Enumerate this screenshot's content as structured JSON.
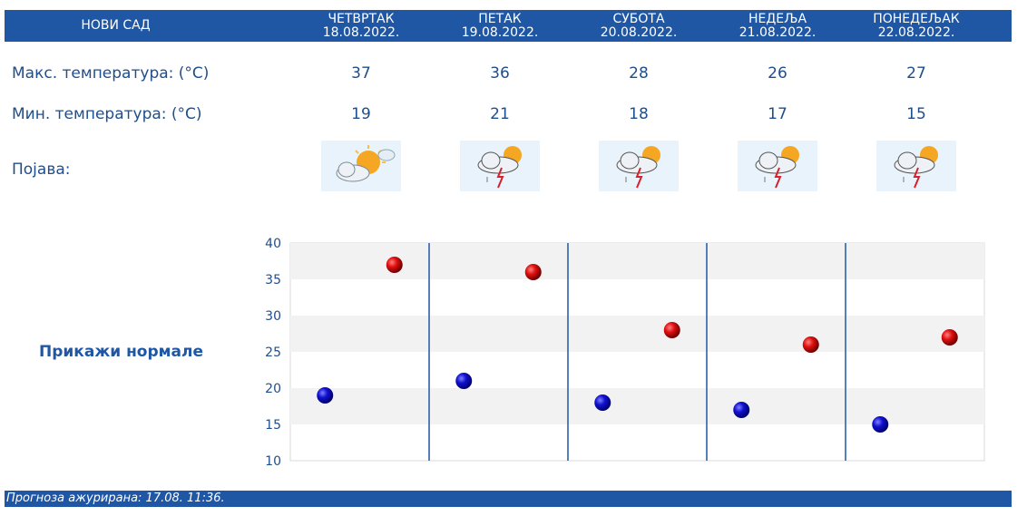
{
  "header": {
    "city": "НОВИ САД",
    "days": [
      {
        "name": "ЧЕТВРТАК",
        "date": "18.08.2022."
      },
      {
        "name": "ПЕТАК",
        "date": "19.08.2022."
      },
      {
        "name": "СУБОТА",
        "date": "20.08.2022."
      },
      {
        "name": "НЕДЕЉА",
        "date": "21.08.2022."
      },
      {
        "name": "ПОНЕДЕЉАК",
        "date": "22.08.2022."
      }
    ]
  },
  "rows": {
    "max_label": "Макс. температура: (°C)",
    "min_label": "Мин. температура: (°C)",
    "phenomenon_label": "Појава:",
    "max_values": [
      "37",
      "36",
      "28",
      "26",
      "27"
    ],
    "min_values": [
      "19",
      "21",
      "18",
      "17",
      "15"
    ],
    "icons": [
      "partly-sunny-icon",
      "thunderstorm-sun-icon",
      "thunderstorm-sun-icon",
      "thunderstorm-sun-icon",
      "thunderstorm-sun-icon"
    ]
  },
  "normals_link": "Прикажи нормале",
  "chart_data": {
    "type": "scatter",
    "categories": [
      "ЧЕТВРТАК",
      "ПЕТАК",
      "СУБОТА",
      "НЕДЕЉА",
      "ПОНЕДЕЉАК"
    ],
    "series": [
      {
        "values": [
          19,
          21,
          18,
          17,
          15
        ],
        "color": "#1010c0"
      },
      {
        "values": [
          37,
          36,
          28,
          26,
          27
        ],
        "color": "#d01010"
      }
    ],
    "ylim": [
      10,
      40
    ],
    "yticks": [
      "40",
      "35",
      "30",
      "25",
      "20",
      "15",
      "10"
    ],
    "grid": "alternating horizontal bands"
  },
  "footer": {
    "updated": "Прогноза ажурирана:  17.08. 11:36."
  },
  "colors": {
    "header_bg": "#1f57a5",
    "text": "#1f4e8c",
    "band": "#f2f2f2"
  }
}
